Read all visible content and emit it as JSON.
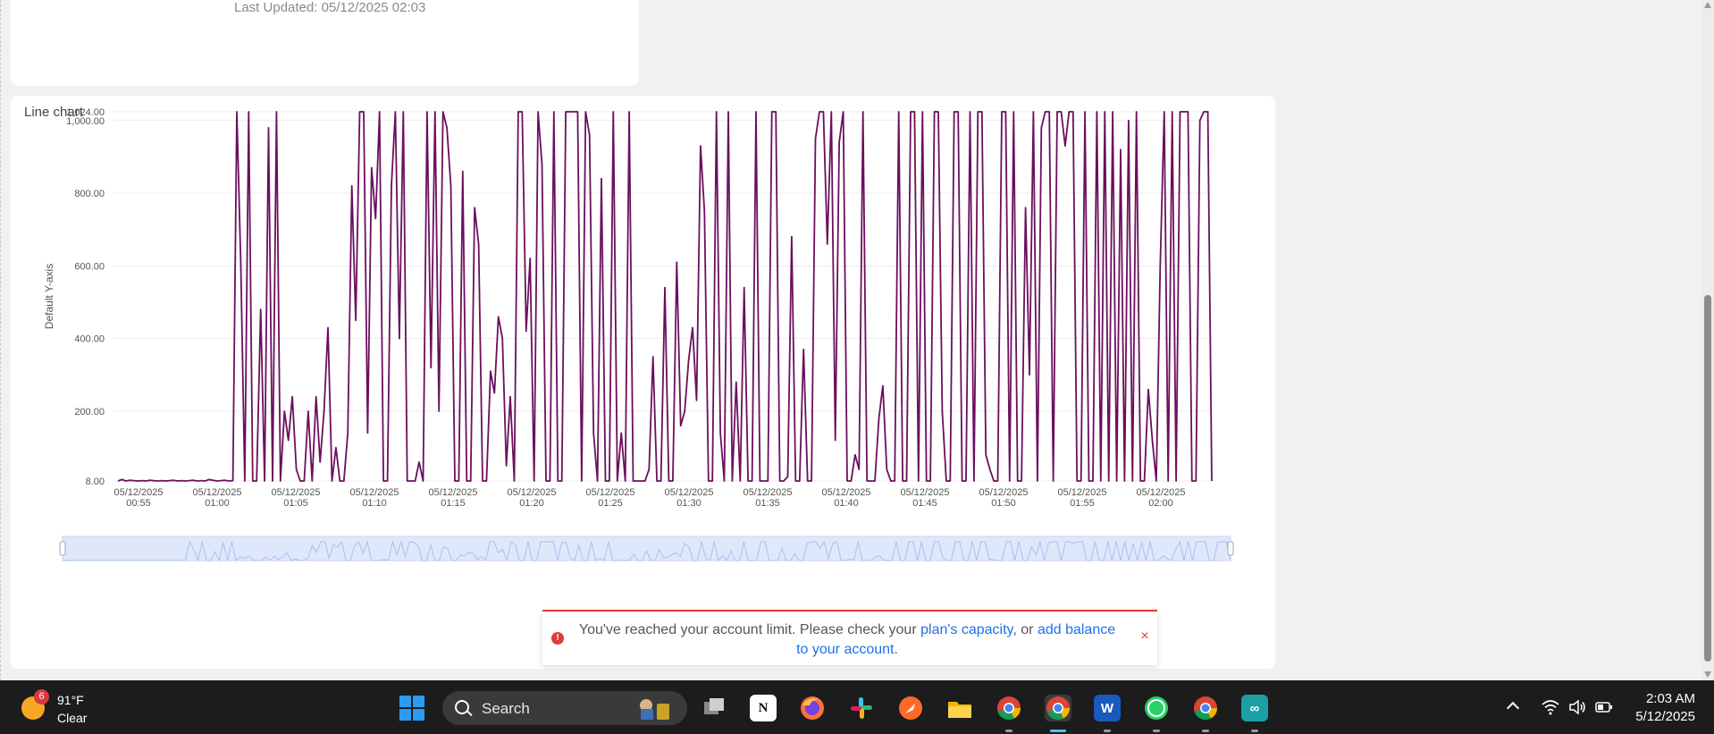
{
  "top_card": {
    "last_updated": "Last Updated: 05/12/2025 02:03"
  },
  "chart_card": {
    "title": "Line chart"
  },
  "chart_data": {
    "type": "line",
    "ylabel": "Default Y-axis",
    "xlabel": "",
    "ylim": [
      8,
      1024
    ],
    "y_ticks": [
      "8.00",
      "200.00",
      "400.00",
      "600.00",
      "800.00",
      "1,000.00",
      "1,024.00"
    ],
    "y_tick_values": [
      8,
      200,
      400,
      600,
      800,
      1000,
      1024
    ],
    "x_ticks": [
      [
        "05/12/2025",
        "00:55"
      ],
      [
        "05/12/2025",
        "01:00"
      ],
      [
        "05/12/2025",
        "01:05"
      ],
      [
        "05/12/2025",
        "01:10"
      ],
      [
        "05/12/2025",
        "01:15"
      ],
      [
        "05/12/2025",
        "01:20"
      ],
      [
        "05/12/2025",
        "01:25"
      ],
      [
        "05/12/2025",
        "01:30"
      ],
      [
        "05/12/2025",
        "01:35"
      ],
      [
        "05/12/2025",
        "01:40"
      ],
      [
        "05/12/2025",
        "01:45"
      ],
      [
        "05/12/2025",
        "01:50"
      ],
      [
        "05/12/2025",
        "01:55"
      ],
      [
        "05/12/2025",
        "02:00"
      ]
    ],
    "color": "#6b0f5e",
    "series": [
      {
        "values": [
          8,
          12,
          8,
          10,
          9,
          8,
          9,
          8,
          10,
          9,
          8,
          9,
          8,
          9,
          10,
          8,
          9,
          8,
          9,
          10,
          8,
          9,
          8,
          12,
          10,
          8,
          9,
          10,
          8,
          9,
          1024,
          600,
          8,
          1024,
          8,
          8,
          480,
          8,
          980,
          8,
          1024,
          8,
          200,
          120,
          240,
          40,
          8,
          8,
          200,
          8,
          240,
          60,
          200,
          430,
          8,
          100,
          8,
          8,
          140,
          820,
          450,
          1024,
          1024,
          140,
          870,
          730,
          1024,
          8,
          8,
          820,
          1024,
          400,
          1024,
          8,
          8,
          8,
          60,
          8,
          1024,
          320,
          1024,
          200,
          1024,
          980,
          820,
          8,
          8,
          860,
          8,
          8,
          760,
          660,
          8,
          8,
          310,
          250,
          460,
          400,
          50,
          240,
          8,
          1024,
          1024,
          420,
          620,
          8,
          1024,
          880,
          8,
          8,
          1024,
          8,
          8,
          1024,
          1024,
          1024,
          1024,
          8,
          1024,
          960,
          140,
          8,
          840,
          8,
          8,
          1024,
          8,
          140,
          8,
          1024,
          8,
          8,
          8,
          8,
          40,
          350,
          8,
          8,
          540,
          8,
          8,
          610,
          160,
          200,
          340,
          430,
          230,
          930,
          750,
          8,
          8,
          1024,
          140,
          8,
          1024,
          8,
          280,
          8,
          540,
          8,
          8,
          1024,
          8,
          8,
          8,
          1024,
          1024,
          8,
          8,
          20,
          680,
          8,
          8,
          370,
          8,
          8,
          950,
          1024,
          1024,
          660,
          1024,
          120,
          940,
          1024,
          8,
          8,
          80,
          40,
          1024,
          8,
          8,
          8,
          180,
          270,
          40,
          8,
          8,
          1024,
          8,
          8,
          1024,
          1024,
          8,
          1024,
          8,
          8,
          1024,
          1024,
          200,
          8,
          8,
          1024,
          1024,
          8,
          8,
          1024,
          8,
          1024,
          1024,
          80,
          40,
          8,
          8,
          1024,
          1024,
          8,
          1024,
          8,
          8,
          760,
          300,
          1024,
          8,
          980,
          1024,
          1024,
          8,
          1024,
          1024,
          930,
          1024,
          1024,
          8,
          8,
          1024,
          8,
          8,
          1024,
          8,
          1024,
          8,
          1024,
          8,
          920,
          8,
          1000,
          8,
          1024,
          8,
          8,
          260,
          120,
          8,
          600,
          1024,
          8,
          1024,
          8,
          1024,
          1024,
          1024,
          8,
          8,
          1000,
          1024,
          1024,
          8
        ]
      }
    ],
    "grid": true,
    "legend": "none"
  },
  "navigator": {},
  "toast": {
    "text_before": "You've reached your account limit. Please check your ",
    "link_capacity": "plan's capacity",
    "text_middle": ", or ",
    "link_balance": "add balance to your account.",
    "close_glyph": "×"
  },
  "taskbar": {
    "weather_badge": "6",
    "weather_temp": "91°F",
    "weather_desc": "Clear",
    "search_label": "Search",
    "clock_time": "2:03 AM",
    "clock_date": "5/12/2025",
    "apps": [
      "file-explorer",
      "notion",
      "firefox",
      "slack",
      "app",
      "files",
      "chrome",
      "chrome",
      "word",
      "whatsapp",
      "chrome",
      "arduino"
    ]
  }
}
